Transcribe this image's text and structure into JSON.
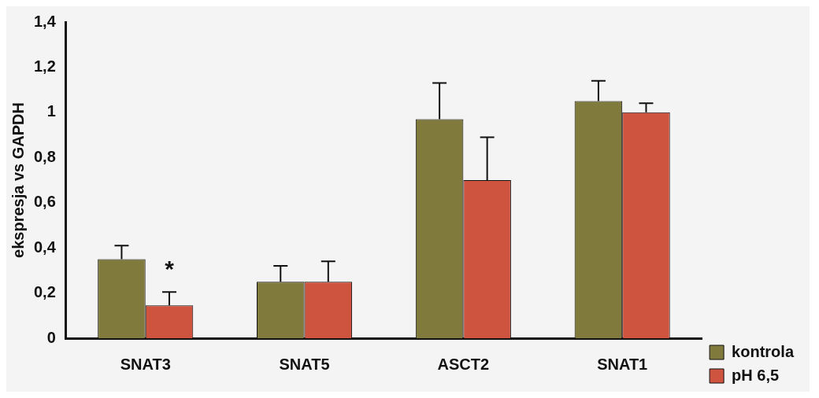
{
  "chart_data": {
    "type": "bar",
    "ylabel": "ekspresja vs GAPDH",
    "categories": [
      "SNAT3",
      "SNAT5",
      "ASCT2",
      "SNAT1"
    ],
    "series": [
      {
        "name": "kontrola",
        "color": "#807a3c",
        "values": [
          0.35,
          0.25,
          0.97,
          1.05
        ],
        "errors": [
          0.06,
          0.07,
          0.16,
          0.09
        ]
      },
      {
        "name": "pH 6,5",
        "color": "#cf5440",
        "values": [
          0.145,
          0.25,
          0.7,
          1.0
        ],
        "errors": [
          0.06,
          0.09,
          0.19,
          0.04
        ]
      }
    ],
    "ylim": [
      0,
      1.4
    ],
    "yticks": [
      {
        "value": 0,
        "label": "0"
      },
      {
        "value": 0.2,
        "label": "0,2"
      },
      {
        "value": 0.4,
        "label": "0,4"
      },
      {
        "value": 0.6,
        "label": "0,6"
      },
      {
        "value": 0.8,
        "label": "0,8"
      },
      {
        "value": 1,
        "label": "1"
      },
      {
        "value": 1.2,
        "label": "1,2"
      },
      {
        "value": 1.4,
        "label": "1,4"
      }
    ],
    "annotations": [
      {
        "text": "*",
        "x": "SNAT3",
        "y": 0.3
      }
    ],
    "legend": "bottom right"
  }
}
